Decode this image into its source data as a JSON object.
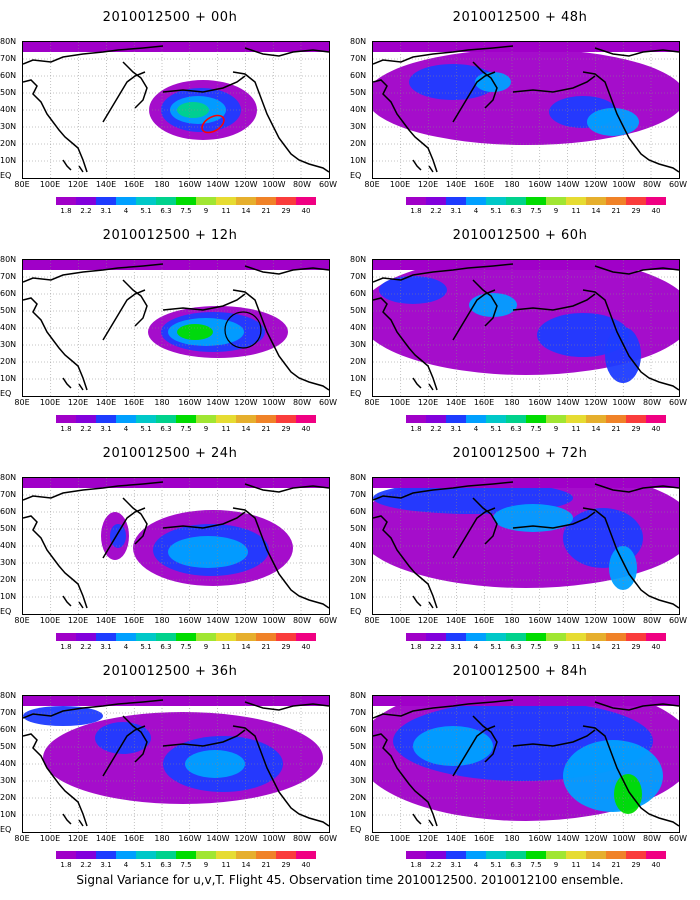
{
  "panels": [
    {
      "title": "2010012500 + 00h",
      "id": "00h"
    },
    {
      "title": "2010012500 + 48h",
      "id": "48h"
    },
    {
      "title": "2010012500 + 12h",
      "id": "12h"
    },
    {
      "title": "2010012500 + 60h",
      "id": "60h"
    },
    {
      "title": "2010012500 + 24h",
      "id": "24h"
    },
    {
      "title": "2010012500 + 72h",
      "id": "72h"
    },
    {
      "title": "2010012500 + 36h",
      "id": "36h"
    },
    {
      "title": "2010012500 + 84h",
      "id": "84h"
    }
  ],
  "lat_labels": [
    "80N",
    "70N",
    "60N",
    "50N",
    "40N",
    "30N",
    "20N",
    "10N",
    "EQ"
  ],
  "lon_labels": [
    "80E",
    "100E",
    "120E",
    "140E",
    "160E",
    "180",
    "160W",
    "140W",
    "120W",
    "100W",
    "80W",
    "60W"
  ],
  "colorbar": {
    "levels": [
      "1.8",
      "2.2",
      "3.1",
      "4",
      "5.1",
      "6.3",
      "7.5",
      "9",
      "11",
      "14",
      "21",
      "29",
      "40"
    ],
    "colors": [
      "#a000c8",
      "#8200dc",
      "#1e3cff",
      "#00a0ff",
      "#00c8c8",
      "#00d28c",
      "#00dc00",
      "#a0e632",
      "#e6dc32",
      "#e6af2d",
      "#f08228",
      "#fa3c3c",
      "#f00082"
    ]
  },
  "footer": "Signal Variance for u,v,T. Flight 45. Observation time 2010012500. 2010012100 ensemble."
}
